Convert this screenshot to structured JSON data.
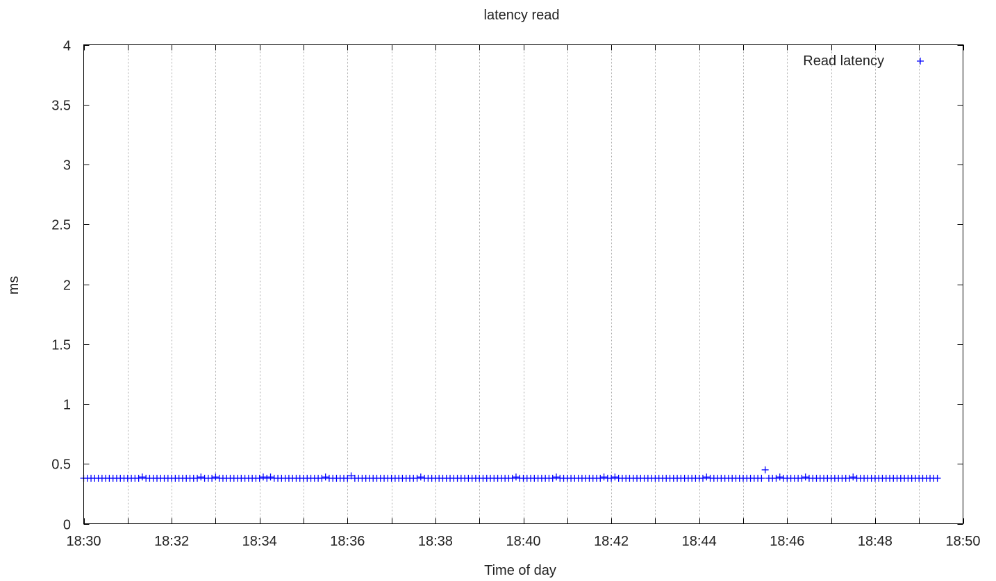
{
  "chart_data": {
    "type": "scatter",
    "title": "latency read",
    "xlabel": "Time of day",
    "ylabel": "ms",
    "xlim": [
      "18:30",
      "18:50"
    ],
    "ylim": [
      0,
      4
    ],
    "x_ticks": [
      "18:30",
      "18:32",
      "18:34",
      "18:36",
      "18:38",
      "18:40",
      "18:42",
      "18:44",
      "18:46",
      "18:48",
      "18:50"
    ],
    "y_ticks": [
      "0",
      "0.5",
      "1",
      "1.5",
      "2",
      "2.5",
      "3",
      "3.5",
      "4"
    ],
    "grid": "vertical, every minute (dotted)",
    "legend_position": "top-right",
    "marker": "plus",
    "series": [
      {
        "name": "Read latency",
        "color": "#0000ff",
        "sample_interval_seconds": 5,
        "x_start": "18:30:00",
        "x_end": "18:49:25",
        "baseline_ms": 0.38,
        "points": [
          {
            "x": "18:30:00",
            "y": 0.38
          },
          {
            "x": "18:31:20",
            "y": 0.39
          },
          {
            "x": "18:32:40",
            "y": 0.39
          },
          {
            "x": "18:33:00",
            "y": 0.39
          },
          {
            "x": "18:34:05",
            "y": 0.39
          },
          {
            "x": "18:34:15",
            "y": 0.39
          },
          {
            "x": "18:35:30",
            "y": 0.39
          },
          {
            "x": "18:36:05",
            "y": 0.4
          },
          {
            "x": "18:37:40",
            "y": 0.39
          },
          {
            "x": "18:39:50",
            "y": 0.39
          },
          {
            "x": "18:40:45",
            "y": 0.39
          },
          {
            "x": "18:41:50",
            "y": 0.39
          },
          {
            "x": "18:42:05",
            "y": 0.39
          },
          {
            "x": "18:44:10",
            "y": 0.39
          },
          {
            "x": "18:45:30",
            "y": 0.45
          },
          {
            "x": "18:45:50",
            "y": 0.39
          },
          {
            "x": "18:46:25",
            "y": 0.39
          },
          {
            "x": "18:47:30",
            "y": 0.39
          },
          {
            "x": "18:49:25",
            "y": 0.38
          }
        ]
      }
    ]
  }
}
